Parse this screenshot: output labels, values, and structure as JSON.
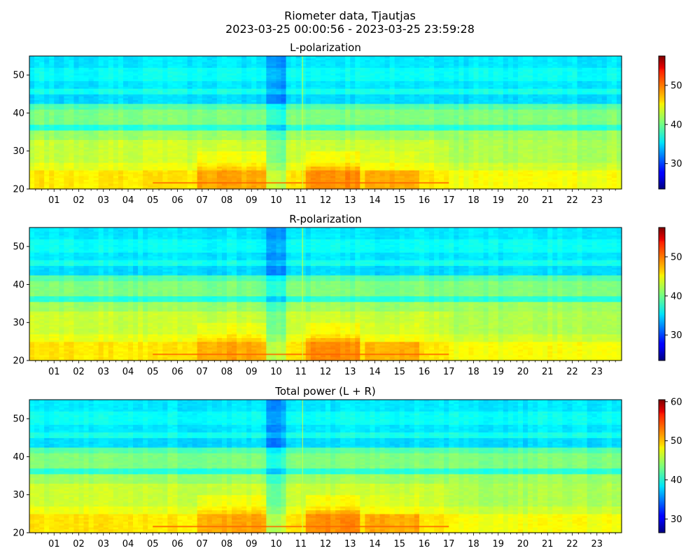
{
  "suptitle_line1": "Riometer data, Tjautjas",
  "suptitle_line2": "2023-03-25 00:00:56 - 2023-03-25 23:59:28",
  "chart_data": [
    {
      "type": "heatmap",
      "title": "L-polarization",
      "x_tick_labels": [
        "01",
        "02",
        "03",
        "04",
        "05",
        "06",
        "07",
        "08",
        "09",
        "10",
        "11",
        "12",
        "13",
        "14",
        "15",
        "16",
        "17",
        "18",
        "19",
        "20",
        "21",
        "22",
        "23"
      ],
      "xlim_hours": [
        0,
        24
      ],
      "ylim": [
        20,
        55
      ],
      "y_ticks": [
        20,
        30,
        40,
        50
      ],
      "colorbar": {
        "range": [
          23.5,
          57.5
        ],
        "ticks": [
          30,
          40,
          50
        ]
      },
      "colormap": "jet",
      "description_values": {
        "low_band_level": 45,
        "mid_band_level": 42,
        "high_band_level": 36
      }
    },
    {
      "type": "heatmap",
      "title": "R-polarization",
      "x_tick_labels": [
        "01",
        "02",
        "03",
        "04",
        "05",
        "06",
        "07",
        "08",
        "09",
        "10",
        "11",
        "12",
        "13",
        "14",
        "15",
        "16",
        "17",
        "18",
        "19",
        "20",
        "21",
        "22",
        "23"
      ],
      "xlim_hours": [
        0,
        24
      ],
      "ylim": [
        20,
        55
      ],
      "y_ticks": [
        20,
        30,
        40,
        50
      ],
      "colorbar": {
        "range": [
          23.5,
          57.5
        ],
        "ticks": [
          30,
          40,
          50
        ]
      },
      "colormap": "jet",
      "description_values": {
        "low_band_level": 45,
        "mid_band_level": 42,
        "high_band_level": 36
      }
    },
    {
      "type": "heatmap",
      "title": "Total power (L + R)",
      "x_tick_labels": [
        "01",
        "02",
        "03",
        "04",
        "05",
        "06",
        "07",
        "08",
        "09",
        "10",
        "11",
        "12",
        "13",
        "14",
        "15",
        "16",
        "17",
        "18",
        "19",
        "20",
        "21",
        "22",
        "23"
      ],
      "xlim_hours": [
        0,
        24
      ],
      "ylim": [
        20,
        55
      ],
      "y_ticks": [
        20,
        30,
        40,
        50
      ],
      "colorbar": {
        "range": [
          26.5,
          60.5
        ],
        "ticks": [
          30,
          40,
          50,
          60
        ]
      },
      "colormap": "jet",
      "description_values": {
        "low_band_level": 48,
        "mid_band_level": 45,
        "high_band_level": 39
      }
    }
  ]
}
